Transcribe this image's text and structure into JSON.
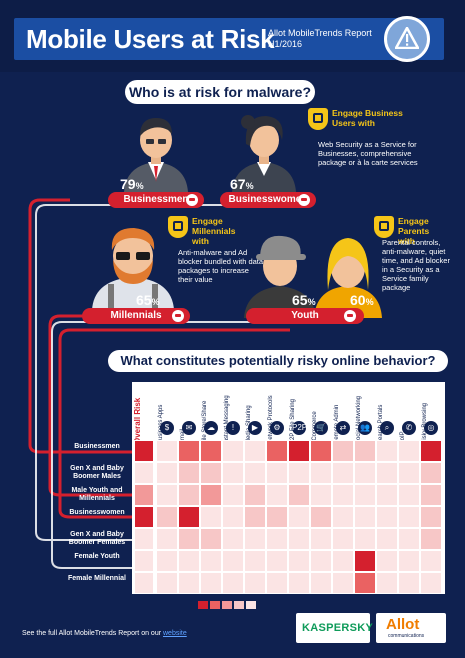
{
  "header": {
    "title": "Mobile Users at Risk",
    "report": "Allot MobileTrends Report",
    "period": "H1/2016"
  },
  "section1": {
    "question": "Who is at risk for malware?"
  },
  "segments": {
    "businessmen": {
      "label": "Businessmen",
      "percent": "79",
      "unit": "%"
    },
    "businesswomen": {
      "label": "Businesswomen",
      "percent": "67",
      "unit": "%"
    },
    "millennials": {
      "label": "Millennials",
      "percent": "65",
      "unit": "%"
    },
    "youth_male": {
      "percent": "65",
      "unit": "%"
    },
    "youth_female": {
      "percent": "60",
      "unit": "%"
    },
    "youth": {
      "label": "Youth"
    }
  },
  "engage": {
    "business": {
      "title": "Engage Business Users with",
      "desc": "Web Security as a Service for Businesses, comprehensive package or à la carte services"
    },
    "millennials": {
      "title": "Engage Millennials with",
      "desc": "Anti-malware and Ad blocker bundled with data packages to increase their value"
    },
    "parents": {
      "title": "Engage Parents with",
      "desc": "Parental controls, anti-malware, quiet time, and Ad blocker in a Security as a Service family package"
    }
  },
  "section2": {
    "question": "What constitutes potentially risky online behavior?"
  },
  "matrix": {
    "overall_label": "Overall Risk",
    "columns": [
      "Business Apps",
      "Email",
      "File Store/Share",
      "Instant Messaging",
      "Media Sharing",
      "Network Protocols",
      "P2P File Sharing",
      "eCommerce",
      "Remote Admin",
      "Social Networking",
      "Search Portals",
      "VoIP",
      "Risky Browsing"
    ],
    "column_icons": [
      "$",
      "✉",
      "☁",
      "!",
      "▶",
      "⚙",
      "P2P",
      "🛒",
      "⇄",
      "👥",
      "⌕",
      "✆",
      "◎"
    ],
    "rows": [
      {
        "label": "Businessmen",
        "overall": 5,
        "values": [
          1,
          4,
          4,
          1,
          1,
          4,
          5,
          4,
          2,
          2,
          1,
          1,
          5
        ]
      },
      {
        "label": "Gen X and Baby Boomer Males",
        "overall": 1,
        "values": [
          1,
          2,
          2,
          1,
          1,
          1,
          1,
          1,
          1,
          1,
          1,
          1,
          2
        ]
      },
      {
        "label": "Male Youth and Millennials",
        "overall": 3,
        "values": [
          1,
          2,
          3,
          1,
          2,
          1,
          2,
          1,
          1,
          1,
          1,
          1,
          2
        ]
      },
      {
        "label": "Businesswomen",
        "overall": 5,
        "values": [
          2,
          5,
          1,
          1,
          2,
          2,
          1,
          2,
          1,
          1,
          1,
          1,
          2
        ]
      },
      {
        "label": "Gen X and Baby Boomer Females",
        "overall": 1,
        "values": [
          1,
          2,
          2,
          1,
          1,
          1,
          1,
          1,
          1,
          1,
          1,
          1,
          2
        ]
      },
      {
        "label": "Female Youth",
        "overall": 1,
        "values": [
          1,
          1,
          1,
          1,
          1,
          1,
          1,
          1,
          1,
          5,
          1,
          1,
          1
        ]
      },
      {
        "label": "Female Millennial",
        "overall": 1,
        "values": [
          1,
          1,
          1,
          1,
          1,
          1,
          1,
          1,
          1,
          4,
          1,
          1,
          1
        ]
      }
    ],
    "scale_colors": [
      "#fbe4e4",
      "#f7c7c7",
      "#f29999",
      "#ea6262",
      "#d4202e"
    ]
  },
  "footer": {
    "text": "See the full Allot MobileTrends Report on our",
    "link": "website"
  },
  "logos": {
    "kaspersky": "KASPERSKY",
    "allot": "Allot",
    "allot_sub": "communications"
  },
  "colors": {
    "background": "#0f2150",
    "accent_red": "#d4202e",
    "accent_yellow": "#f5c518",
    "header_blue": "#1b4ea3"
  }
}
